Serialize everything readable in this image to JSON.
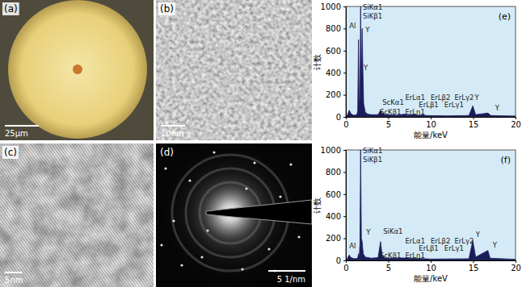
{
  "panels": [
    {
      "label": "(a)",
      "scale_bar": "25μm"
    },
    {
      "label": "(b)",
      "scale_bar": "10nm"
    },
    {
      "label": "(c)",
      "scale_bar": "5nm"
    },
    {
      "label": "(d)",
      "scale_bar": "5 1/nm"
    }
  ],
  "chart_data": [
    {
      "type": "area",
      "title": "(e)",
      "color": "#1c1c5a",
      "xlabel": "能量/keV",
      "ylabel": "计数",
      "xlim": [
        0,
        20
      ],
      "ylim": [
        0,
        1000
      ],
      "xticks": [
        0,
        5,
        10,
        15,
        20
      ],
      "yticks": [
        0,
        200,
        400,
        600,
        800,
        1000
      ],
      "x": [
        0,
        0.2,
        0.4,
        0.6,
        0.9,
        1.3,
        1.4,
        1.49,
        1.58,
        1.66,
        1.74,
        1.83,
        1.92,
        2.0,
        2.1,
        2.3,
        2.6,
        3.0,
        3.8,
        4.09,
        4.3,
        4.46,
        4.6,
        6.0,
        6.95,
        7.3,
        7.81,
        8.19,
        8.6,
        9.09,
        9.5,
        12,
        14.5,
        14.96,
        15.3,
        16.74,
        17.1,
        20
      ],
      "values": [
        0,
        20,
        60,
        30,
        15,
        20,
        60,
        700,
        80,
        200,
        1000,
        300,
        800,
        460,
        120,
        40,
        25,
        20,
        20,
        60,
        25,
        35,
        20,
        15,
        25,
        15,
        22,
        20,
        14,
        18,
        12,
        10,
        12,
        100,
        20,
        35,
        12,
        8
      ],
      "annotations": [
        {
          "text": "SiKα1",
          "x": 2.0,
          "y": 970
        },
        {
          "text": "SiKβ1",
          "x": 2.0,
          "y": 890
        },
        {
          "text": "Al",
          "x": 0.4,
          "y": 800
        },
        {
          "text": "Y",
          "x": 2.3,
          "y": 770
        },
        {
          "text": "Y",
          "x": 2.1,
          "y": 420
        },
        {
          "text": "ScKα1",
          "x": 4.3,
          "y": 110
        },
        {
          "text": "ScKβ1",
          "x": 4.0,
          "y": 25
        },
        {
          "text": "ErLη1",
          "x": 7.0,
          "y": 25
        },
        {
          "text": "ErLα1",
          "x": 7.0,
          "y": 155
        },
        {
          "text": "ErLβ2",
          "x": 10.0,
          "y": 155
        },
        {
          "text": "ErLβ1",
          "x": 8.6,
          "y": 90
        },
        {
          "text": "ErLγ1",
          "x": 11.6,
          "y": 90
        },
        {
          "text": "ErLγ2",
          "x": 12.8,
          "y": 155
        },
        {
          "text": "Y",
          "x": 15.2,
          "y": 150
        },
        {
          "text": "Y",
          "x": 17.6,
          "y": 60
        }
      ]
    },
    {
      "type": "area",
      "title": "(f)",
      "color": "#1c1c5a",
      "xlabel": "能量/keV",
      "ylabel": "计数",
      "xlim": [
        0,
        20
      ],
      "ylim": [
        0,
        1000
      ],
      "xticks": [
        0,
        5,
        10,
        15,
        20
      ],
      "yticks": [
        0,
        200,
        400,
        600,
        800,
        1000
      ],
      "x": [
        0,
        0.2,
        0.4,
        0.6,
        1.0,
        1.4,
        1.49,
        1.58,
        1.66,
        1.74,
        1.83,
        1.92,
        2.05,
        2.3,
        3.0,
        3.8,
        4.09,
        4.3,
        4.46,
        4.6,
        6.95,
        7.81,
        8.19,
        9.09,
        10,
        14.5,
        14.96,
        15.3,
        16.74,
        17.0,
        20
      ],
      "values": [
        0,
        20,
        50,
        25,
        15,
        20,
        60,
        30,
        150,
        1000,
        200,
        170,
        60,
        30,
        20,
        25,
        170,
        30,
        40,
        20,
        22,
        20,
        18,
        16,
        12,
        15,
        180,
        30,
        90,
        20,
        10
      ],
      "annotations": [
        {
          "text": "SiKα1",
          "x": 2.0,
          "y": 970
        },
        {
          "text": "SiKβ1",
          "x": 2.0,
          "y": 890
        },
        {
          "text": "Al",
          "x": 0.4,
          "y": 110
        },
        {
          "text": "Y",
          "x": 2.4,
          "y": 230
        },
        {
          "text": "SiKα1",
          "x": 4.4,
          "y": 240
        },
        {
          "text": "ScKβ1",
          "x": 4.0,
          "y": 25
        },
        {
          "text": "ErLη1",
          "x": 7.0,
          "y": 25
        },
        {
          "text": "ErLα1",
          "x": 7.0,
          "y": 155
        },
        {
          "text": "ErLβ2",
          "x": 10.0,
          "y": 155
        },
        {
          "text": "ErLβ1",
          "x": 8.6,
          "y": 90
        },
        {
          "text": "ErLγ1",
          "x": 11.6,
          "y": 90
        },
        {
          "text": "ErLγ2",
          "x": 12.8,
          "y": 155
        },
        {
          "text": "Y",
          "x": 15.3,
          "y": 210
        },
        {
          "text": "Y",
          "x": 17.3,
          "y": 120
        }
      ]
    }
  ]
}
